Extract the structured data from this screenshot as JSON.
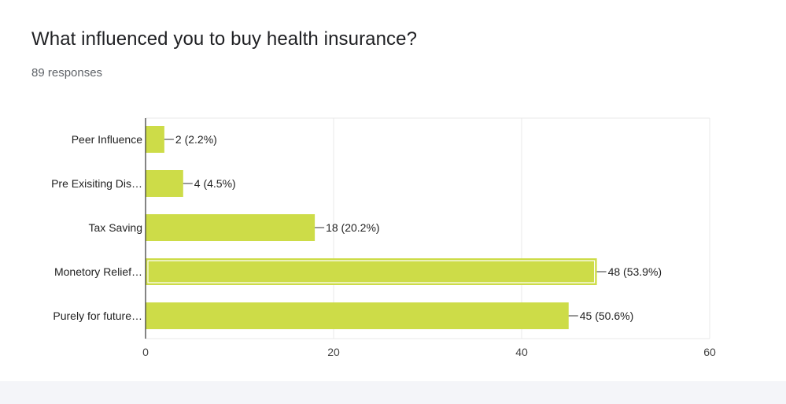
{
  "question": {
    "title": "What influenced you to buy health insurance?",
    "responses": "89 responses"
  },
  "colors": {
    "bar": "#cddc48",
    "bar_highlight_border": "#ffffff",
    "grid": "#e9e9e9",
    "axis": "#333333",
    "text": "#222222",
    "tick_text": "#444444"
  },
  "chart_data": {
    "type": "bar",
    "orientation": "horizontal",
    "categories": [
      "Peer Influence",
      "Pre Exisiting Dis…",
      "Tax Saving",
      "Monetory Relief…",
      "Purely for future…"
    ],
    "values": [
      2,
      4,
      18,
      48,
      45
    ],
    "data_labels": [
      "2 (2.2%)",
      "4 (4.5%)",
      "18 (20.2%)",
      "48 (53.9%)",
      "45 (50.6%)"
    ],
    "highlighted_index": 3,
    "xlim": [
      0,
      60
    ],
    "xticks": [
      0,
      20,
      40,
      60
    ],
    "grid": true,
    "legend": "none",
    "title": "",
    "xlabel": "",
    "ylabel": ""
  }
}
